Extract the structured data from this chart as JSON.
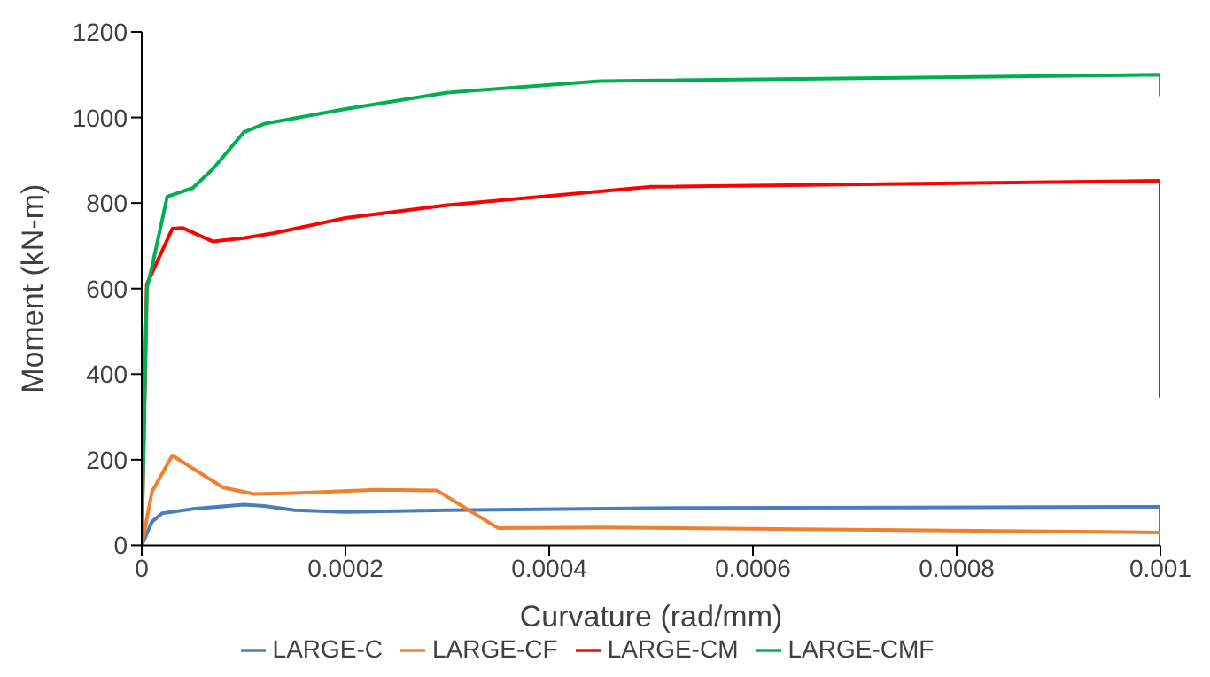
{
  "chart_data": {
    "type": "line",
    "xlabel": "Curvature (rad/mm)",
    "ylabel": "Moment (kN-m)",
    "xlim": [
      0,
      0.001
    ],
    "xticks": [
      0,
      0.0002,
      0.0004,
      0.0006,
      0.0008,
      0.001
    ],
    "ylim": [
      0,
      1200
    ],
    "yticks": [
      0,
      200,
      400,
      600,
      800,
      1000,
      1200
    ],
    "grid": false,
    "legend": "bottom",
    "marker": "none",
    "line_style": "solid",
    "series": [
      {
        "name": "LARGE-C",
        "color": "#4a7ebb",
        "x": [
          0,
          1e-05,
          2e-05,
          5e-05,
          0.0001,
          0.00012,
          0.00015,
          0.0002,
          0.0003,
          0.0005,
          0.001,
          0.001
        ],
        "values": [
          0,
          55,
          75,
          85,
          95,
          92,
          82,
          78,
          82,
          87,
          90,
          0
        ]
      },
      {
        "name": "LARGE-CF",
        "color": "#f07f2f",
        "x": [
          0,
          1e-05,
          3e-05,
          5e-05,
          8e-05,
          0.00011,
          0.00015,
          0.00023,
          0.00029,
          0.00035,
          0.00045,
          0.001
        ],
        "values": [
          0,
          125,
          210,
          180,
          135,
          120,
          122,
          130,
          128,
          40,
          42,
          30
        ]
      },
      {
        "name": "LARGE-CM",
        "color": "#ff0000",
        "x": [
          0,
          5e-06,
          3e-05,
          4e-05,
          7e-05,
          0.0001,
          0.00013,
          0.00018,
          0.0002,
          0.0003,
          0.0005,
          0.001,
          0.001
        ],
        "values": [
          0,
          610,
          740,
          742,
          710,
          718,
          730,
          755,
          765,
          795,
          838,
          852,
          345
        ]
      },
      {
        "name": "LARGE-CMF",
        "color": "#00b050",
        "x": [
          0,
          5e-06,
          1e-05,
          2.5e-05,
          5e-05,
          7e-05,
          0.0001,
          0.00012,
          0.0002,
          0.0003,
          0.00045,
          0.001,
          0.001
        ],
        "values": [
          0,
          600,
          650,
          815,
          835,
          880,
          965,
          985,
          1020,
          1058,
          1085,
          1100,
          1050
        ]
      }
    ]
  }
}
